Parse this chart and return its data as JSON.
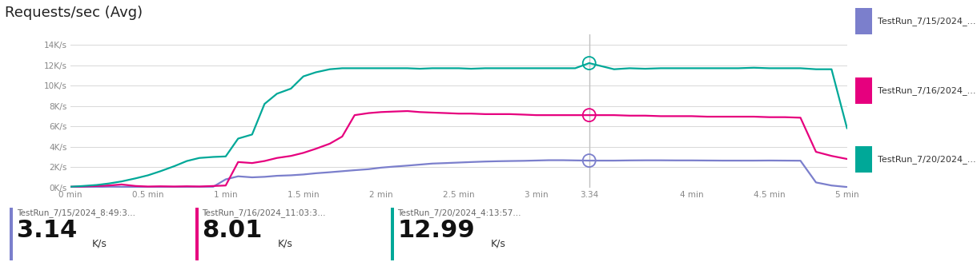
{
  "title": "Requests/sec (Avg)",
  "title_fontsize": 13,
  "background_color": "#ffffff",
  "plot_bg_color": "#ffffff",
  "grid_color": "#d8d8d8",
  "ylim": [
    0,
    15000
  ],
  "xlim": [
    0,
    5.0
  ],
  "yticks": [
    0,
    2000,
    4000,
    6000,
    8000,
    10000,
    12000,
    14000
  ],
  "ytick_labels": [
    "0K/s",
    "2K/s",
    "4K/s",
    "6K/s",
    "8K/s",
    "10K/s",
    "12K/s",
    "14K/s"
  ],
  "xticks": [
    0,
    0.5,
    1.0,
    1.5,
    2.0,
    2.5,
    3.0,
    3.34,
    4.0,
    4.5,
    5.0
  ],
  "xtick_labels": [
    "0 min",
    "0.5 min",
    "1 min",
    "1.5 min",
    "2 min",
    "2.5 min",
    "3 min",
    "3.34",
    "4 min",
    "4.5 min",
    "5 min"
  ],
  "vline_x": 3.34,
  "vline_color": "#c0c0c0",
  "legend_labels": [
    "TestRun_7/15/2024_...",
    "TestRun_7/16/2024_...",
    "TestRun_7/20/2024_..."
  ],
  "legend_colors": [
    "#7b7fcc",
    "#e6007e",
    "#00a898"
  ],
  "series": {
    "blue": {
      "color": "#7b7fcc",
      "x": [
        0,
        0.08,
        0.17,
        0.25,
        0.33,
        0.42,
        0.5,
        0.58,
        0.67,
        0.75,
        0.83,
        0.92,
        1.0,
        1.08,
        1.17,
        1.25,
        1.33,
        1.42,
        1.5,
        1.58,
        1.67,
        1.75,
        1.83,
        1.92,
        2.0,
        2.08,
        2.17,
        2.25,
        2.33,
        2.42,
        2.5,
        2.58,
        2.67,
        2.75,
        2.83,
        2.92,
        3.0,
        3.08,
        3.17,
        3.25,
        3.34,
        3.5,
        3.6,
        3.7,
        3.8,
        3.9,
        4.0,
        4.1,
        4.2,
        4.3,
        4.4,
        4.5,
        4.6,
        4.7,
        4.8,
        4.9,
        5.0
      ],
      "y": [
        30,
        50,
        60,
        80,
        70,
        60,
        50,
        55,
        60,
        70,
        75,
        80,
        800,
        1100,
        1000,
        1050,
        1150,
        1200,
        1280,
        1400,
        1500,
        1600,
        1700,
        1800,
        1950,
        2050,
        2150,
        2250,
        2350,
        2400,
        2450,
        2500,
        2550,
        2580,
        2600,
        2620,
        2650,
        2680,
        2680,
        2660,
        2640,
        2640,
        2660,
        2670,
        2670,
        2660,
        2660,
        2650,
        2640,
        2640,
        2640,
        2650,
        2640,
        2630,
        500,
        200,
        50
      ]
    },
    "pink": {
      "color": "#e6007e",
      "x": [
        0,
        0.08,
        0.17,
        0.25,
        0.33,
        0.42,
        0.5,
        0.58,
        0.67,
        0.75,
        0.83,
        0.92,
        1.0,
        1.08,
        1.17,
        1.25,
        1.33,
        1.42,
        1.5,
        1.58,
        1.67,
        1.75,
        1.83,
        1.92,
        2.0,
        2.08,
        2.17,
        2.25,
        2.33,
        2.42,
        2.5,
        2.58,
        2.67,
        2.75,
        2.83,
        2.92,
        3.0,
        3.08,
        3.17,
        3.25,
        3.34,
        3.5,
        3.6,
        3.7,
        3.8,
        3.9,
        4.0,
        4.1,
        4.2,
        4.3,
        4.4,
        4.5,
        4.6,
        4.7,
        4.8,
        4.9,
        5.0
      ],
      "y": [
        80,
        100,
        150,
        200,
        300,
        150,
        100,
        120,
        100,
        120,
        100,
        150,
        200,
        2500,
        2400,
        2600,
        2900,
        3100,
        3400,
        3800,
        4300,
        5000,
        7100,
        7300,
        7400,
        7450,
        7500,
        7400,
        7350,
        7300,
        7250,
        7250,
        7200,
        7200,
        7200,
        7150,
        7100,
        7100,
        7100,
        7100,
        7100,
        7100,
        7050,
        7050,
        7000,
        7000,
        7000,
        6950,
        6950,
        6950,
        6950,
        6900,
        6900,
        6850,
        3500,
        3100,
        2800
      ]
    },
    "teal": {
      "color": "#00a898",
      "x": [
        0,
        0.08,
        0.17,
        0.25,
        0.33,
        0.42,
        0.5,
        0.58,
        0.67,
        0.75,
        0.83,
        0.92,
        1.0,
        1.08,
        1.17,
        1.25,
        1.33,
        1.42,
        1.5,
        1.58,
        1.67,
        1.75,
        1.83,
        1.92,
        2.0,
        2.08,
        2.17,
        2.25,
        2.33,
        2.42,
        2.5,
        2.58,
        2.67,
        2.75,
        2.83,
        2.92,
        3.0,
        3.08,
        3.17,
        3.25,
        3.34,
        3.5,
        3.6,
        3.7,
        3.8,
        3.9,
        4.0,
        4.1,
        4.2,
        4.3,
        4.4,
        4.5,
        4.6,
        4.7,
        4.8,
        4.9,
        5.0
      ],
      "y": [
        80,
        150,
        250,
        400,
        600,
        900,
        1200,
        1600,
        2100,
        2600,
        2900,
        3000,
        3050,
        4800,
        5200,
        8200,
        9200,
        9700,
        10900,
        11300,
        11600,
        11700,
        11700,
        11700,
        11700,
        11700,
        11700,
        11650,
        11700,
        11700,
        11700,
        11650,
        11700,
        11700,
        11700,
        11700,
        11700,
        11700,
        11700,
        11700,
        12200,
        11600,
        11700,
        11650,
        11700,
        11700,
        11700,
        11700,
        11700,
        11700,
        11750,
        11700,
        11700,
        11700,
        11600,
        11600,
        5800
      ]
    }
  },
  "highlight_x": 3.34,
  "highlight_points": {
    "blue": 2640,
    "pink": 7100,
    "teal": 12200
  },
  "stats": [
    {
      "label": "TestRun_7/15/2024_8:49:3...",
      "value": "3.14",
      "unit": "K/s",
      "color": "#7b7fcc"
    },
    {
      "label": "TestRun_7/16/2024_11:03:3...",
      "value": "8.01",
      "unit": "K/s",
      "color": "#e6007e"
    },
    {
      "label": "TestRun_7/20/2024_4:13:57...",
      "value": "12.99",
      "unit": "K/s",
      "color": "#00a898"
    }
  ]
}
